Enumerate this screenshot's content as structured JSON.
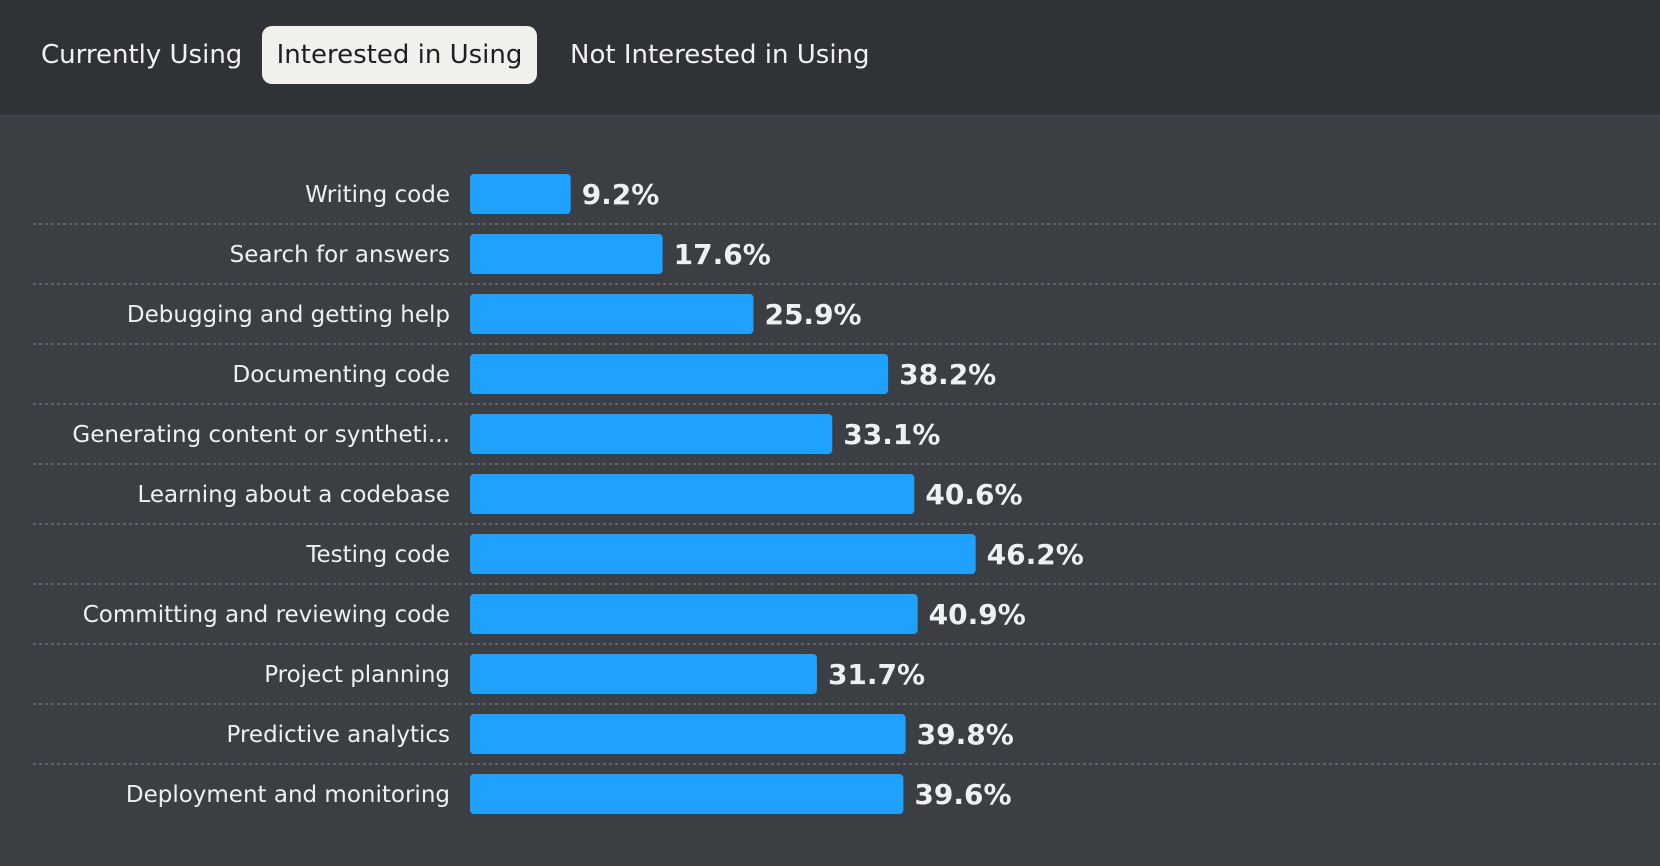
{
  "tabs": [
    {
      "label": "Currently Using",
      "selected": false
    },
    {
      "label": "Interested in Using",
      "selected": true
    },
    {
      "label": "Not Interested in Using",
      "selected": false
    }
  ],
  "colors": {
    "bar": "#1ea1ff",
    "background": "#3b3f44",
    "tabbar": "#2f3237",
    "selected_tab": "#f1f0ec"
  },
  "chart_data": {
    "type": "bar",
    "orientation": "horizontal",
    "categories": [
      "Writing code",
      "Search for answers",
      "Debugging and getting help",
      "Documenting code",
      "Generating content or syntheti...",
      "Learning about a codebase",
      "Testing code",
      "Committing and reviewing code",
      "Project planning",
      "Predictive analytics",
      "Deployment and monitoring"
    ],
    "values": [
      9.2,
      17.6,
      25.9,
      38.2,
      33.1,
      40.6,
      46.2,
      40.9,
      31.7,
      39.8,
      39.6
    ],
    "value_labels": [
      "9.2%",
      "17.6%",
      "25.9%",
      "38.2%",
      "33.1%",
      "40.6%",
      "46.2%",
      "40.9%",
      "31.7%",
      "39.8%",
      "39.6%"
    ],
    "title": "",
    "xlabel": "",
    "ylabel": "",
    "xlim": [
      0,
      100
    ],
    "grid": false,
    "legend": "none"
  }
}
